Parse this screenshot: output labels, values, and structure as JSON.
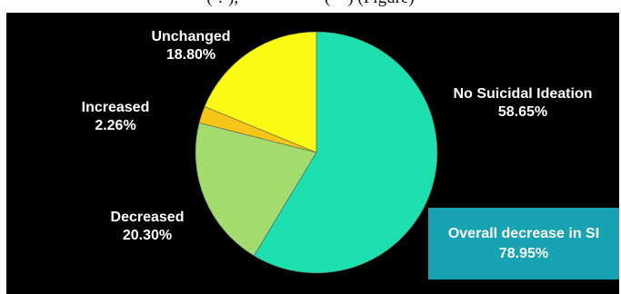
{
  "top_caption": "(·.·), ··· ··· ··· ···(···) (Figure)",
  "chart_data": {
    "type": "pie",
    "title": "",
    "slices": [
      {
        "label": "No Suicidal Ideation",
        "value": 58.65,
        "value_text": "58.65%",
        "color": "#1de0ae"
      },
      {
        "label": "Decreased",
        "value": 20.3,
        "value_text": "20.30%",
        "color": "#a2dc6e"
      },
      {
        "label": "Increased",
        "value": 2.26,
        "value_text": "2.26%",
        "color": "#f5c518"
      },
      {
        "label": "Unchanged",
        "value": 18.8,
        "value_text": "18.80%",
        "color": "#fafa14"
      }
    ],
    "start_angle_deg": 0,
    "direction": "clockwise",
    "callout": {
      "line1": "Overall  decrease in SI",
      "line2": "78.95%",
      "color": "#18a3b3"
    }
  }
}
